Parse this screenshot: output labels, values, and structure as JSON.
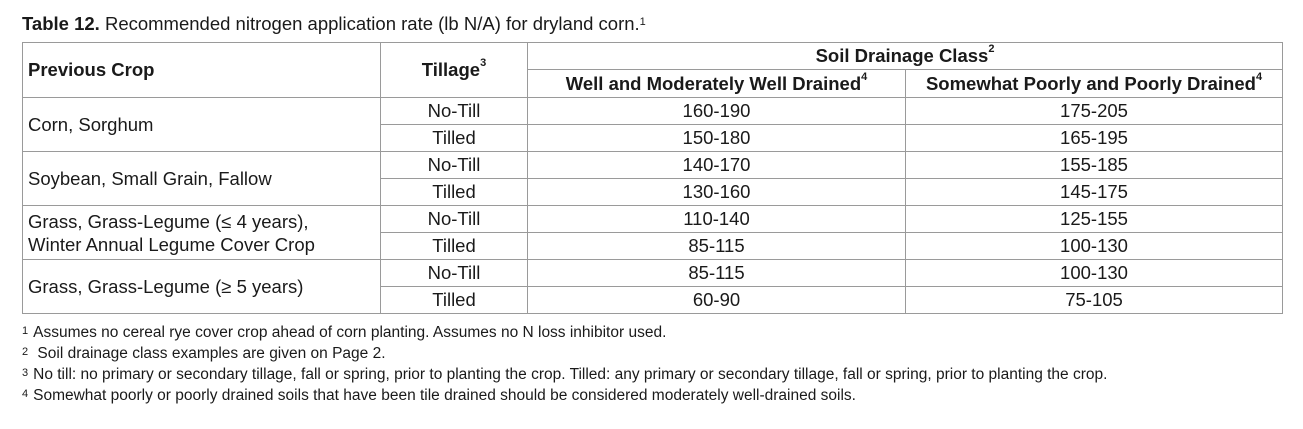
{
  "caption": {
    "label": "Table 12.",
    "text": " Recommended nitrogen application rate (lb N/A) for dryland corn.",
    "sup": "1"
  },
  "headers": {
    "previous_crop": "Previous Crop",
    "tillage": "Tillage",
    "tillage_sup": "3",
    "drainage_class": "Soil Drainage Class",
    "drainage_class_sup": "2",
    "well": "Well and Moderately Well Drained",
    "well_sup": "4",
    "poor": "Somewhat Poorly and Poorly Drained",
    "poor_sup": "4"
  },
  "rows": [
    {
      "crop_lines": [
        "Corn, Sorghum"
      ],
      "notill": [
        "No-Till",
        "160-190",
        "175-205"
      ],
      "tilled": [
        "Tilled",
        "150-180",
        "165-195"
      ]
    },
    {
      "crop_lines": [
        "Soybean, Small Grain, Fallow"
      ],
      "notill": [
        "No-Till",
        "140-170",
        "155-185"
      ],
      "tilled": [
        "Tilled",
        "130-160",
        "145-175"
      ]
    },
    {
      "crop_lines": [
        "Grass, Grass-Legume (≤ 4 years),",
        "Winter Annual Legume Cover Crop"
      ],
      "notill": [
        "No-Till",
        "110-140",
        "125-155"
      ],
      "tilled": [
        "Tilled",
        "85-115",
        "100-130"
      ]
    },
    {
      "crop_lines": [
        "Grass, Grass-Legume (≥ 5 years)"
      ],
      "notill": [
        "No-Till",
        "85-115",
        "100-130"
      ],
      "tilled": [
        "Tilled",
        "60-90",
        "75-105"
      ]
    }
  ],
  "footnotes": [
    {
      "num": "1",
      "text": "Assumes no cereal rye cover crop ahead of corn planting. Assumes no N loss inhibitor used."
    },
    {
      "num": "2",
      "text": " Soil drainage class examples are given on Page 2."
    },
    {
      "num": "3",
      "text": "No till: no primary or secondary tillage, fall or spring, prior to planting the crop. Tilled: any primary or secondary tillage, fall or spring, prior to planting the crop."
    },
    {
      "num": "4",
      "text": "Somewhat poorly or poorly drained soils that have been tile drained should be considered moderately well-drained soils."
    }
  ]
}
